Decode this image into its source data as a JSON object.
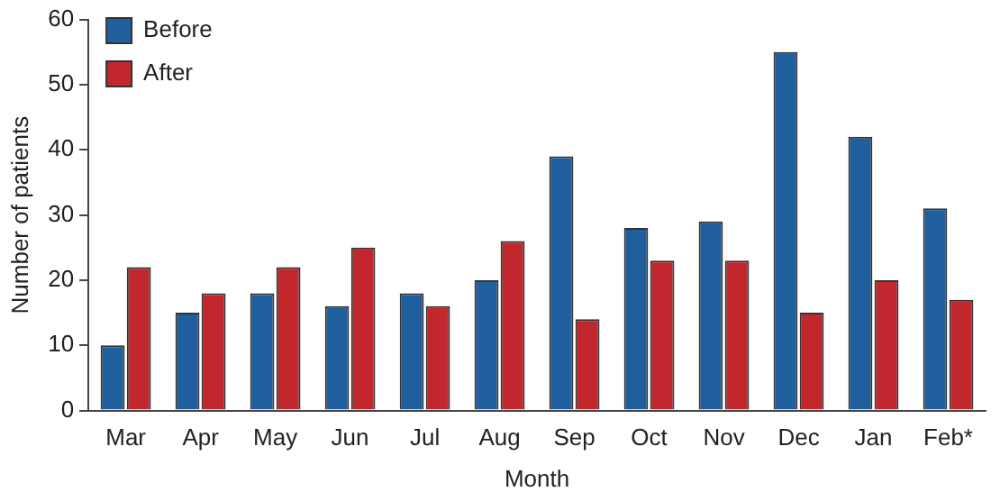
{
  "chart_data": {
    "type": "bar",
    "xlabel": "Month",
    "ylabel": "Number of patients",
    "categories": [
      "Mar",
      "Apr",
      "May",
      "Jun",
      "Jul",
      "Aug",
      "Sep",
      "Oct",
      "Nov",
      "Dec",
      "Jan",
      "Feb*"
    ],
    "series": [
      {
        "name": "Before",
        "color": "#1f5f9e",
        "values": [
          10,
          15,
          18,
          16,
          18,
          20,
          39,
          28,
          29,
          55,
          42,
          31
        ]
      },
      {
        "name": "After",
        "color": "#c1272d",
        "values": [
          22,
          18,
          22,
          25,
          16,
          26,
          14,
          23,
          23,
          15,
          20,
          17
        ]
      }
    ],
    "ylim": [
      0,
      60
    ],
    "yticks": [
      0,
      10,
      20,
      30,
      40,
      50,
      60
    ],
    "grid": false,
    "legend": "top left"
  }
}
